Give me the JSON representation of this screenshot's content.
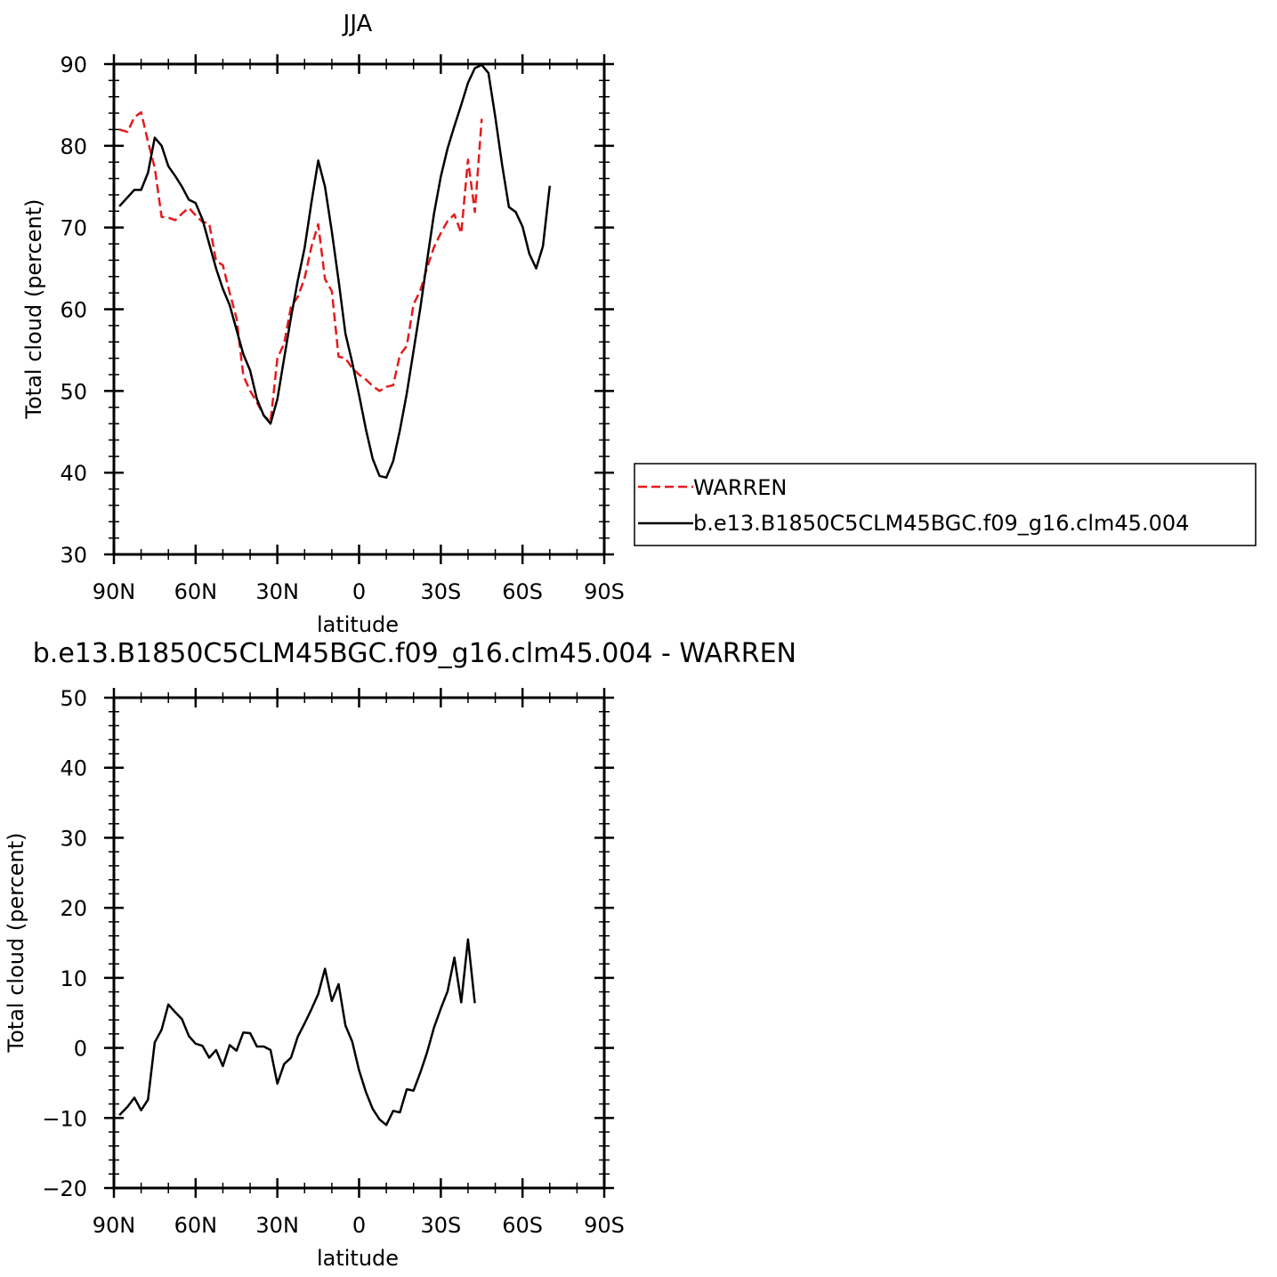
{
  "chart_data": [
    {
      "type": "line",
      "title": "JJA",
      "xlabel": "latitude",
      "ylabel": "Total cloud (percent)",
      "xlim": [
        90,
        -90
      ],
      "ylim": [
        30,
        90
      ],
      "x_ticks": [
        {
          "value": 90,
          "label": "90N"
        },
        {
          "value": 60,
          "label": "60N"
        },
        {
          "value": 30,
          "label": "30N"
        },
        {
          "value": 0,
          "label": "0"
        },
        {
          "value": -30,
          "label": "30S"
        },
        {
          "value": -60,
          "label": "60S"
        },
        {
          "value": -90,
          "label": "90S"
        }
      ],
      "y_ticks": [
        30,
        40,
        50,
        60,
        70,
        80,
        90
      ],
      "legend": {
        "placement": "right",
        "entries": [
          "WARREN",
          "b.e13.B1850C5CLM45BGC.f09_g16.clm45.004"
        ]
      },
      "series": [
        {
          "name": "WARREN",
          "color": "#e41a1c",
          "dash": true,
          "points": [
            [
              88,
              82.0
            ],
            [
              85,
              81.7
            ],
            [
              82.5,
              83.5
            ],
            [
              80,
              84.1
            ],
            [
              77.5,
              80.5
            ],
            [
              75,
              77.3
            ],
            [
              72.5,
              71.3
            ],
            [
              70,
              71.2
            ],
            [
              67.5,
              70.9
            ],
            [
              65,
              71.7
            ],
            [
              62.5,
              72.4
            ],
            [
              60,
              71.5
            ],
            [
              57.5,
              70.7
            ],
            [
              55,
              70.5
            ],
            [
              52.5,
              65.9
            ],
            [
              50,
              65.4
            ],
            [
              47.5,
              62.0
            ],
            [
              45,
              58.9
            ],
            [
              42.5,
              51.9
            ],
            [
              40,
              50.0
            ],
            [
              37.5,
              48.6
            ],
            [
              35,
              47.0
            ],
            [
              32.5,
              46.2
            ],
            [
              30,
              54.0
            ],
            [
              27.5,
              55.8
            ],
            [
              25,
              60.3
            ],
            [
              22.5,
              61.5
            ],
            [
              20,
              63.8
            ],
            [
              17.5,
              67.6
            ],
            [
              15,
              70.4
            ],
            [
              12.5,
              63.7
            ],
            [
              10,
              62.2
            ],
            [
              7.5,
              54.2
            ],
            [
              5,
              54.0
            ],
            [
              2.5,
              52.8
            ],
            [
              0,
              52.0
            ],
            [
              -2.5,
              51.4
            ],
            [
              -5,
              50.6
            ],
            [
              -7.5,
              50.0
            ],
            [
              -10,
              50.5
            ],
            [
              -12.5,
              50.7
            ],
            [
              -15,
              54.4
            ],
            [
              -17.5,
              55.5
            ],
            [
              -20,
              60.6
            ],
            [
              -22.5,
              62.3
            ],
            [
              -25,
              65.1
            ],
            [
              -27.5,
              67.6
            ],
            [
              -30,
              69.3
            ],
            [
              -32.5,
              70.8
            ],
            [
              -35,
              71.6
            ],
            [
              -37.5,
              69.3
            ],
            [
              -40,
              78.3
            ],
            [
              -42.5,
              71.9
            ],
            [
              -45,
              83.3
            ]
          ]
        },
        {
          "name": "b.e13.B1850C5CLM45BGC.f09_g16.clm45.004",
          "color": "#000000",
          "dash": false,
          "points": [
            [
              88,
              72.6
            ],
            [
              82.5,
              74.6
            ],
            [
              80,
              74.6
            ],
            [
              77.5,
              76.7
            ],
            [
              75,
              81.0
            ],
            [
              72.5,
              80.0
            ],
            [
              70,
              77.5
            ],
            [
              67.5,
              76.3
            ],
            [
              65,
              75.0
            ],
            [
              62.5,
              73.4
            ],
            [
              60,
              73.0
            ],
            [
              57.5,
              71.0
            ],
            [
              55,
              68.0
            ],
            [
              52.5,
              65.0
            ],
            [
              50,
              62.5
            ],
            [
              47.5,
              60.5
            ],
            [
              45,
              57.5
            ],
            [
              42.5,
              54.5
            ],
            [
              40,
              52.5
            ],
            [
              37.5,
              49.0
            ],
            [
              35,
              47.0
            ],
            [
              32.5,
              46.0
            ],
            [
              30,
              49.0
            ],
            [
              27.5,
              54.0
            ],
            [
              25,
              59.0
            ],
            [
              22.5,
              63.5
            ],
            [
              20,
              67.5
            ],
            [
              17.5,
              73.0
            ],
            [
              15,
              78.2
            ],
            [
              12.5,
              75.0
            ],
            [
              10,
              69.5
            ],
            [
              7.5,
              63.5
            ],
            [
              5,
              57.0
            ],
            [
              2.5,
              53.5
            ],
            [
              0,
              49.5
            ],
            [
              -2.5,
              45.3
            ],
            [
              -5,
              41.7
            ],
            [
              -7.5,
              39.6
            ],
            [
              -10,
              39.4
            ],
            [
              -12.5,
              41.4
            ],
            [
              -15,
              45.2
            ],
            [
              -17.5,
              49.7
            ],
            [
              -20,
              54.9
            ],
            [
              -22.5,
              60.2
            ],
            [
              -25,
              66.0
            ],
            [
              -27.5,
              71.7
            ],
            [
              -30,
              76.2
            ],
            [
              -32.5,
              79.7
            ],
            [
              -35,
              82.4
            ],
            [
              -37.5,
              85.0
            ],
            [
              -40,
              87.7
            ],
            [
              -42.5,
              89.5
            ],
            [
              -45,
              89.9
            ],
            [
              -47.5,
              88.9
            ],
            [
              -50,
              83.5
            ],
            [
              -52.5,
              77.7
            ],
            [
              -55,
              72.5
            ],
            [
              -57.5,
              71.9
            ],
            [
              -60,
              70.1
            ],
            [
              -62.5,
              66.8
            ],
            [
              -65,
              65.0
            ],
            [
              -67.5,
              67.7
            ],
            [
              -70,
              75.1
            ]
          ]
        }
      ]
    },
    {
      "type": "line",
      "title": "b.e13.B1850C5CLM45BGC.f09_g16.clm45.004 - WARREN",
      "xlabel": "latitude",
      "ylabel": "Total cloud (percent)",
      "xlim": [
        90,
        -90
      ],
      "ylim": [
        -20,
        50
      ],
      "x_ticks": [
        {
          "value": 90,
          "label": "90N"
        },
        {
          "value": 60,
          "label": "60N"
        },
        {
          "value": 30,
          "label": "30N"
        },
        {
          "value": 0,
          "label": "0"
        },
        {
          "value": -30,
          "label": "30S"
        },
        {
          "value": -60,
          "label": "60S"
        },
        {
          "value": -90,
          "label": "90S"
        }
      ],
      "y_ticks": [
        -20,
        -10,
        0,
        10,
        20,
        30,
        40,
        50
      ],
      "series": [
        {
          "color": "#000000",
          "dash": false,
          "points": [
            [
              88,
              -9.6
            ],
            [
              85,
              -8.4
            ],
            [
              82.5,
              -7.1
            ],
            [
              80,
              -8.9
            ],
            [
              77.5,
              -7.4
            ],
            [
              75,
              0.8
            ],
            [
              72.5,
              2.6
            ],
            [
              70,
              6.2
            ],
            [
              67.5,
              5.1
            ],
            [
              65,
              4.1
            ],
            [
              62.5,
              1.7
            ],
            [
              60,
              0.6
            ],
            [
              57.5,
              0.3
            ],
            [
              55,
              -1.4
            ],
            [
              52.5,
              -0.3
            ],
            [
              50,
              -2.6
            ],
            [
              47.5,
              0.4
            ],
            [
              45,
              -0.4
            ],
            [
              42.5,
              2.2
            ],
            [
              40,
              2.1
            ],
            [
              37.5,
              0.2
            ],
            [
              35,
              0.2
            ],
            [
              32.5,
              -0.3
            ],
            [
              30,
              -5.1
            ],
            [
              27.5,
              -2.3
            ],
            [
              25,
              -1.4
            ],
            [
              22.5,
              1.6
            ],
            [
              20,
              3.5
            ],
            [
              17.5,
              5.5
            ],
            [
              15,
              7.7
            ],
            [
              12.5,
              11.3
            ],
            [
              10,
              6.7
            ],
            [
              7.5,
              9.1
            ],
            [
              5,
              3.2
            ],
            [
              2.5,
              0.9
            ],
            [
              0,
              -3.2
            ],
            [
              -2.5,
              -6.3
            ],
            [
              -5,
              -8.7
            ],
            [
              -7.5,
              -10.2
            ],
            [
              -10,
              -11.0
            ],
            [
              -12.5,
              -9.0
            ],
            [
              -15,
              -9.2
            ],
            [
              -17.5,
              -5.9
            ],
            [
              -20,
              -6.1
            ],
            [
              -22.5,
              -3.5
            ],
            [
              -25,
              -0.6
            ],
            [
              -27.5,
              2.9
            ],
            [
              -30,
              5.6
            ],
            [
              -32.5,
              8.1
            ],
            [
              -35,
              12.9
            ],
            [
              -37.5,
              6.5
            ],
            [
              -40,
              15.5
            ],
            [
              -42.5,
              6.4
            ]
          ]
        }
      ]
    }
  ]
}
